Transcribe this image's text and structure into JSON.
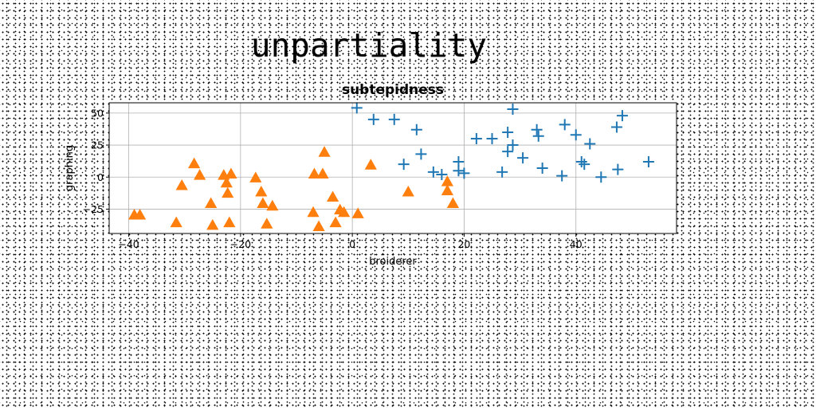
{
  "figure": {
    "suptitle": "unpartiality"
  },
  "chart_data": {
    "type": "scatter",
    "title": "subtepidness",
    "xlabel": "broiderer",
    "ylabel": "graphing",
    "xlim": [
      -43.5,
      58
    ],
    "ylim": [
      -44,
      58
    ],
    "xticks": [
      -40,
      -20,
      0,
      20,
      40
    ],
    "yticks": [
      -25,
      0,
      25,
      50
    ],
    "xtick_labels": [
      "−40",
      "−20",
      "0",
      "20",
      "40"
    ],
    "ytick_labels": [
      "−25",
      "0",
      "25",
      "50"
    ],
    "grid": true,
    "series": [
      {
        "marker": "plus",
        "color": "#1f77b4",
        "points": [
          [
            0.8,
            54
          ],
          [
            3.8,
            45
          ],
          [
            7.5,
            45
          ],
          [
            11.5,
            37
          ],
          [
            12.3,
            18
          ],
          [
            9.2,
            10
          ],
          [
            14.5,
            4
          ],
          [
            16.0,
            2
          ],
          [
            19.0,
            5
          ],
          [
            19.0,
            12
          ],
          [
            20.0,
            3
          ],
          [
            22.2,
            30
          ],
          [
            25.0,
            30
          ],
          [
            26.8,
            4
          ],
          [
            27.8,
            20
          ],
          [
            27.8,
            35
          ],
          [
            28.7,
            53
          ],
          [
            28.7,
            25
          ],
          [
            30.5,
            15
          ],
          [
            33.0,
            37
          ],
          [
            33.3,
            32
          ],
          [
            34.0,
            7
          ],
          [
            37.5,
            1
          ],
          [
            38.0,
            41
          ],
          [
            40.0,
            33
          ],
          [
            41.0,
            12
          ],
          [
            41.5,
            10
          ],
          [
            42.5,
            26
          ],
          [
            44.5,
            0
          ],
          [
            47.3,
            39
          ],
          [
            47.5,
            6
          ],
          [
            48.3,
            48
          ],
          [
            53.0,
            12
          ]
        ]
      },
      {
        "marker": "triangle",
        "color": "#ff7f0e",
        "points": [
          [
            -39.0,
            -30
          ],
          [
            -38.0,
            -30
          ],
          [
            -31.5,
            -36
          ],
          [
            -30.5,
            -7
          ],
          [
            -28.3,
            10
          ],
          [
            -27.3,
            1
          ],
          [
            -25.3,
            -21
          ],
          [
            -25.0,
            -38
          ],
          [
            -23.0,
            1
          ],
          [
            -22.5,
            -5
          ],
          [
            -22.3,
            -13
          ],
          [
            -22.0,
            -36
          ],
          [
            -21.7,
            2
          ],
          [
            -17.3,
            -1
          ],
          [
            -16.3,
            -12
          ],
          [
            -16.0,
            -21
          ],
          [
            -15.3,
            -37
          ],
          [
            -14.3,
            -23
          ],
          [
            -7.0,
            -28
          ],
          [
            -6.8,
            2
          ],
          [
            -6.0,
            -39
          ],
          [
            -5.3,
            2
          ],
          [
            -5.0,
            19
          ],
          [
            -3.5,
            -16
          ],
          [
            -3.0,
            -36
          ],
          [
            -2.2,
            -26
          ],
          [
            -1.5,
            -28
          ],
          [
            1.0,
            -29
          ],
          [
            3.3,
            9
          ],
          [
            10.0,
            -12
          ],
          [
            17.0,
            -4
          ],
          [
            17.0,
            -11
          ],
          [
            18.0,
            -21
          ]
        ]
      }
    ]
  }
}
